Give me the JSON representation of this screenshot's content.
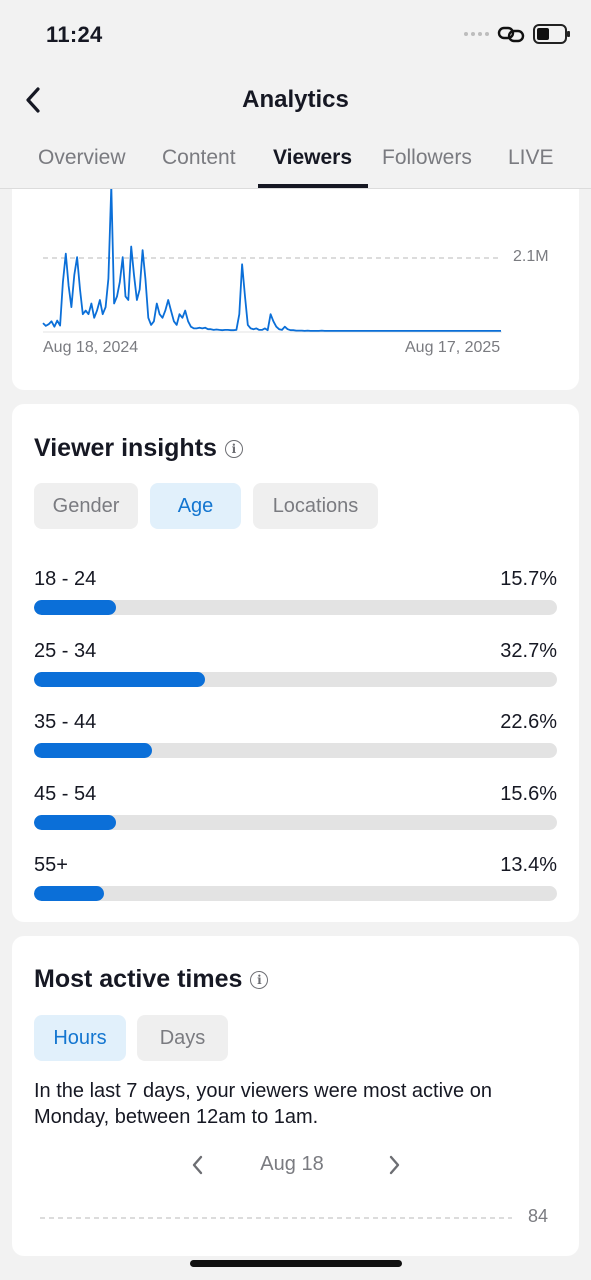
{
  "status": {
    "time": "11:24"
  },
  "nav": {
    "title": "Analytics"
  },
  "tabs": [
    {
      "label": "Overview"
    },
    {
      "label": "Content"
    },
    {
      "label": "Viewers"
    },
    {
      "label": "Followers"
    },
    {
      "label": "LIVE"
    }
  ],
  "active_tab": "Viewers",
  "chart_data": {
    "type": "line",
    "title": "",
    "xlabel": "",
    "ylabel": "",
    "x_start_label": "Aug 18, 2024",
    "x_end_label": "Aug 17, 2025",
    "y_tick_labels": [
      "2.1M"
    ],
    "series_color": "#0b6fd8",
    "values": [
      0.25,
      0.17,
      0.22,
      0.3,
      0.15,
      0.32,
      0.18,
      1.4,
      2.2,
      1.3,
      0.7,
      1.6,
      2.1,
      1.2,
      0.5,
      0.6,
      0.5,
      0.8,
      0.4,
      0.6,
      0.9,
      0.5,
      0.7,
      1.5,
      4.1,
      0.8,
      1.0,
      1.4,
      2.1,
      1.0,
      0.9,
      2.4,
      1.6,
      0.9,
      1.2,
      2.3,
      1.5,
      0.4,
      0.2,
      0.3,
      0.8,
      0.5,
      0.4,
      0.6,
      0.9,
      0.6,
      0.3,
      0.2,
      0.5,
      0.4,
      0.6,
      0.3,
      0.15,
      0.1,
      0.1,
      0.12,
      0.1,
      0.12,
      0.08,
      0.08,
      0.06,
      0.07,
      0.06,
      0.05,
      0.06,
      0.06,
      0.05,
      0.05,
      0.06,
      0.5,
      1.9,
      1.0,
      0.2,
      0.1,
      0.08,
      0.1,
      0.06,
      0.06,
      0.1,
      0.05,
      0.5,
      0.3,
      0.15,
      0.08,
      0.06,
      0.15,
      0.08,
      0.05,
      0.05,
      0.04,
      0.04,
      0.04,
      0.03,
      0.04,
      0.03,
      0.03,
      0.03,
      0.03,
      0.04,
      0.03,
      0.03,
      0.03,
      0.03,
      0.03,
      0.03,
      0.03,
      0.03,
      0.03,
      0.03,
      0.03,
      0.03,
      0.03,
      0.03,
      0.03,
      0.03,
      0.03,
      0.03,
      0.03,
      0.03,
      0.03,
      0.03,
      0.03,
      0.03,
      0.03,
      0.03,
      0.03,
      0.03,
      0.03,
      0.03,
      0.03,
      0.03,
      0.03,
      0.03,
      0.03,
      0.03,
      0.03,
      0.03,
      0.03,
      0.03,
      0.03,
      0.03,
      0.03,
      0.03,
      0.03,
      0.03,
      0.03,
      0.03,
      0.03,
      0.03,
      0.03,
      0.03,
      0.03,
      0.03,
      0.03,
      0.03,
      0.03,
      0.03,
      0.03,
      0.03,
      0.03,
      0.03,
      0.03
    ],
    "ylim": [
      0,
      4.1
    ]
  },
  "viewer_insights": {
    "title": "Viewer insights",
    "filters": [
      {
        "label": "Gender"
      },
      {
        "label": "Age"
      },
      {
        "label": "Locations"
      }
    ],
    "active_filter": "Age",
    "age_rows": [
      {
        "label": "18 - 24",
        "pct": "15.7%",
        "value": 15.7
      },
      {
        "label": "25 - 34",
        "pct": "32.7%",
        "value": 32.7
      },
      {
        "label": "35 - 44",
        "pct": "22.6%",
        "value": 22.6
      },
      {
        "label": "45 - 54",
        "pct": "15.6%",
        "value": 15.6
      },
      {
        "label": "55+",
        "pct": "13.4%",
        "value": 13.4
      }
    ],
    "bar_color": "#0b6fd8"
  },
  "active_times": {
    "title": "Most active times",
    "filters": [
      {
        "label": "Hours"
      },
      {
        "label": "Days"
      }
    ],
    "active_filter": "Hours",
    "description": "In the last 7 days, your viewers were most active on Monday, between 12am to 1am.",
    "date": "Aug 18",
    "y_tick": "84"
  },
  "accent_color": "#1476d0"
}
